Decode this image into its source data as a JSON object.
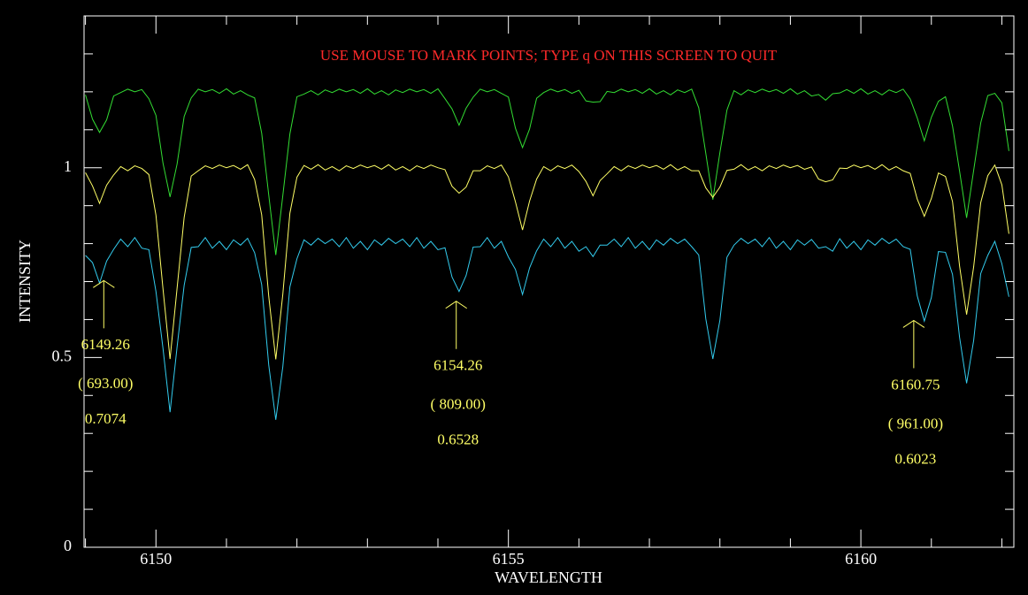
{
  "chart_data": {
    "type": "line",
    "title": "USE MOUSE TO MARK POINTS; TYPE q ON THIS SCREEN TO QUIT",
    "xlabel": "WAVELENGTH",
    "ylabel": "INTENSITY",
    "xlim": [
      6148.98,
      6162.17
    ],
    "ylim": [
      0,
      1.4
    ],
    "xticks": [
      6150,
      6155,
      6160
    ],
    "yticks": [
      0,
      0.5,
      1
    ],
    "xminorticks": [
      6149,
      6151,
      6152,
      6153,
      6154,
      6156,
      6157,
      6158,
      6159,
      6161,
      6162
    ],
    "yminorticks": [
      0.1,
      0.2,
      0.3,
      0.4,
      0.6,
      0.7,
      0.8,
      0.9,
      1.1,
      1.2,
      1.3
    ],
    "x": [
      6149,
      6149.1,
      6149.2,
      6149.3,
      6149.4,
      6149.5,
      6149.6,
      6149.7,
      6149.8,
      6149.9,
      6150,
      6150.1,
      6150.2,
      6150.3,
      6150.4,
      6150.5,
      6150.6,
      6150.7,
      6150.8,
      6150.9,
      6151,
      6151.1,
      6151.2,
      6151.3,
      6151.4,
      6151.5,
      6151.6,
      6151.7,
      6151.8,
      6151.9,
      6152,
      6152.1,
      6152.2,
      6152.3,
      6152.4,
      6152.5,
      6152.6,
      6152.7,
      6152.8,
      6152.9,
      6153,
      6153.1,
      6153.2,
      6153.3,
      6153.4,
      6153.5,
      6153.6,
      6153.7,
      6153.8,
      6153.9,
      6154,
      6154.1,
      6154.2,
      6154.3,
      6154.4,
      6154.5,
      6154.6,
      6154.7,
      6154.8,
      6154.9,
      6155,
      6155.1,
      6155.2,
      6155.3,
      6155.4,
      6155.5,
      6155.6,
      6155.7,
      6155.8,
      6155.9,
      6156,
      6156.1,
      6156.2,
      6156.3,
      6156.4,
      6156.5,
      6156.6,
      6156.7,
      6156.8,
      6156.9,
      6157,
      6157.1,
      6157.2,
      6157.3,
      6157.4,
      6157.5,
      6157.6,
      6157.7,
      6157.8,
      6157.9,
      6158,
      6158.1,
      6158.2,
      6158.3,
      6158.4,
      6158.5,
      6158.6,
      6158.7,
      6158.8,
      6158.9,
      6159,
      6159.1,
      6159.2,
      6159.3,
      6159.4,
      6159.5,
      6159.6,
      6159.7,
      6159.8,
      6159.9,
      6160,
      6160.1,
      6160.2,
      6160.3,
      6160.4,
      6160.5,
      6160.6,
      6160.7,
      6160.8,
      6160.9,
      6161,
      6161.1,
      6161.2,
      6161.3,
      6161.4,
      6161.5,
      6161.6,
      6161.7,
      6161.8,
      6161.9,
      6162,
      6162.1
    ],
    "series": [
      {
        "color": "#33dd33",
        "values": [
          1.192,
          1.128,
          1.093,
          1.126,
          1.189,
          1.198,
          1.207,
          1.2,
          1.206,
          1.182,
          1.138,
          1.012,
          0.923,
          1.01,
          1.135,
          1.184,
          1.207,
          1.2,
          1.206,
          1.196,
          1.208,
          1.194,
          1.203,
          1.192,
          1.184,
          1.091,
          0.928,
          0.77,
          0.927,
          1.089,
          1.187,
          1.194,
          1.203,
          1.192,
          1.205,
          1.198,
          1.207,
          1.2,
          1.206,
          1.196,
          1.208,
          1.194,
          1.203,
          1.192,
          1.205,
          1.198,
          1.207,
          1.2,
          1.206,
          1.196,
          1.208,
          1.182,
          1.155,
          1.112,
          1.157,
          1.186,
          1.207,
          1.2,
          1.206,
          1.196,
          1.186,
          1.104,
          1.053,
          1.102,
          1.183,
          1.198,
          1.207,
          1.2,
          1.206,
          1.196,
          1.204,
          1.176,
          1.173,
          1.174,
          1.201,
          1.198,
          1.207,
          1.2,
          1.206,
          1.196,
          1.208,
          1.194,
          1.203,
          1.192,
          1.205,
          1.198,
          1.207,
          1.158,
          1.038,
          0.916,
          1.04,
          1.152,
          1.203,
          1.192,
          1.205,
          1.198,
          1.207,
          1.2,
          1.206,
          1.196,
          1.208,
          1.194,
          1.203,
          1.189,
          1.193,
          1.178,
          1.195,
          1.197,
          1.206,
          1.196,
          1.208,
          1.194,
          1.203,
          1.192,
          1.205,
          1.198,
          1.207,
          1.181,
          1.131,
          1.071,
          1.133,
          1.175,
          1.187,
          1.11,
          0.991,
          0.868,
          0.993,
          1.118,
          1.19,
          1.196,
          1.171,
          1.044
        ]
      },
      {
        "color": "#ffff66",
        "values": [
          0.987,
          0.952,
          0.906,
          0.954,
          0.981,
          1.003,
          0.992,
          1.005,
          0.998,
          0.982,
          0.875,
          0.681,
          0.496,
          0.683,
          0.869,
          0.978,
          0.992,
          1.005,
          0.998,
          1.007,
          1.0,
          1.006,
          0.996,
          1.008,
          0.969,
          0.876,
          0.661,
          0.495,
          0.667,
          0.88,
          0.975,
          1.006,
          0.996,
          1.008,
          0.994,
          1.003,
          0.992,
          1.005,
          0.998,
          1.007,
          1.0,
          1.006,
          0.996,
          1.008,
          0.994,
          1.003,
          0.992,
          1.005,
          0.998,
          1.007,
          1.0,
          0.995,
          0.951,
          0.933,
          0.949,
          0.992,
          0.992,
          1.005,
          0.998,
          1.007,
          0.976,
          0.91,
          0.836,
          0.912,
          0.97,
          1.003,
          0.992,
          1.005,
          0.998,
          1.007,
          0.99,
          0.964,
          0.926,
          0.966,
          0.984,
          1.003,
          0.992,
          1.005,
          0.998,
          1.007,
          1.0,
          1.006,
          0.996,
          1.008,
          0.994,
          1.003,
          0.992,
          0.992,
          0.947,
          0.922,
          0.949,
          0.993,
          0.996,
          1.008,
          0.994,
          1.003,
          0.992,
          1.005,
          0.998,
          1.007,
          1.0,
          1.006,
          0.996,
          1.002,
          0.97,
          0.963,
          0.968,
          0.999,
          0.998,
          1.007,
          1.0,
          1.006,
          0.996,
          1.008,
          0.994,
          1.003,
          0.992,
          0.985,
          0.917,
          0.872,
          0.919,
          0.986,
          0.977,
          0.911,
          0.741,
          0.613,
          0.739,
          0.908,
          0.979,
          1.007,
          0.955,
          0.826
        ]
      },
      {
        "color": "#33ccee",
        "values": [
          0.769,
          0.75,
          0.696,
          0.754,
          0.785,
          0.812,
          0.792,
          0.816,
          0.788,
          0.784,
          0.674,
          0.524,
          0.356,
          0.528,
          0.69,
          0.79,
          0.792,
          0.816,
          0.788,
          0.806,
          0.784,
          0.81,
          0.796,
          0.814,
          0.776,
          0.692,
          0.48,
          0.336,
          0.476,
          0.686,
          0.76,
          0.81,
          0.796,
          0.814,
          0.8,
          0.812,
          0.792,
          0.816,
          0.788,
          0.806,
          0.784,
          0.81,
          0.796,
          0.814,
          0.8,
          0.812,
          0.792,
          0.816,
          0.788,
          0.806,
          0.784,
          0.789,
          0.712,
          0.674,
          0.716,
          0.791,
          0.792,
          0.816,
          0.788,
          0.806,
          0.765,
          0.732,
          0.666,
          0.736,
          0.781,
          0.812,
          0.792,
          0.816,
          0.788,
          0.806,
          0.78,
          0.792,
          0.766,
          0.796,
          0.796,
          0.812,
          0.792,
          0.816,
          0.788,
          0.806,
          0.784,
          0.81,
          0.796,
          0.814,
          0.8,
          0.812,
          0.792,
          0.77,
          0.602,
          0.496,
          0.598,
          0.764,
          0.796,
          0.814,
          0.8,
          0.812,
          0.792,
          0.816,
          0.788,
          0.806,
          0.784,
          0.81,
          0.796,
          0.811,
          0.788,
          0.792,
          0.78,
          0.813,
          0.788,
          0.806,
          0.784,
          0.81,
          0.796,
          0.814,
          0.8,
          0.812,
          0.792,
          0.785,
          0.662,
          0.596,
          0.658,
          0.779,
          0.777,
          0.719,
          0.553,
          0.432,
          0.545,
          0.721,
          0.769,
          0.806,
          0.747,
          0.66
        ]
      }
    ],
    "annotations": [
      {
        "wavelength": 6149.26,
        "pixel_label": "( 693.00)",
        "intensity": 0.7074
      },
      {
        "wavelength": 6154.26,
        "pixel_label": "( 809.00)",
        "intensity": 0.6528
      },
      {
        "wavelength": 6160.75,
        "pixel_label": "( 961.00)",
        "intensity": 0.6023
      }
    ],
    "annotation_color": "#ffff66"
  }
}
